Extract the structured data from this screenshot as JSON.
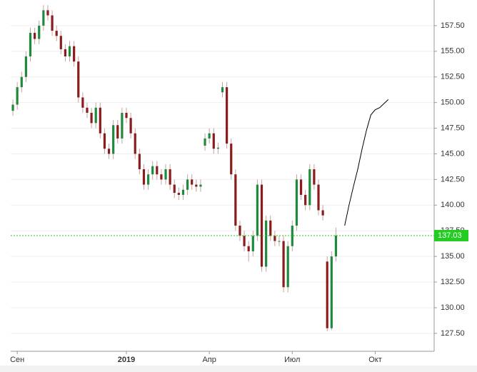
{
  "chart_data": {
    "type": "candlestick",
    "categories": [
      null,
      "Сен",
      null,
      null,
      null,
      null,
      null,
      null,
      null,
      null,
      null,
      null,
      null,
      null,
      null,
      null,
      null,
      null,
      null,
      null,
      null,
      null,
      null,
      null,
      null,
      null,
      "2019",
      null,
      null,
      null,
      null,
      null,
      null,
      null,
      null,
      null,
      null,
      null,
      null,
      null,
      null,
      null,
      null,
      null,
      null,
      "Апр",
      null,
      null,
      null,
      null,
      null,
      null,
      null,
      null,
      null,
      null,
      null,
      null,
      null,
      null,
      null,
      null,
      null,
      null,
      "Июл",
      null,
      null,
      null,
      null,
      null,
      null,
      null,
      null,
      null,
      null,
      null,
      null,
      null,
      null,
      null,
      null,
      null,
      null,
      "Окт",
      null,
      null,
      null,
      null,
      null,
      null,
      null,
      null,
      null,
      null,
      null,
      null,
      null
    ],
    "open": [
      149.2,
      149.8,
      151.5,
      152.5,
      154.5,
      156.8,
      156.2,
      157.5,
      159,
      158.5,
      157,
      156.5,
      155.2,
      154.5,
      155.5,
      154,
      150.5,
      149.5,
      149,
      148,
      149.5,
      147,
      145.5,
      145,
      147.8,
      146.5,
      149,
      148.5,
      147,
      145,
      143.5,
      142,
      143,
      143.8,
      143,
      142.5,
      143.5,
      142,
      141.2,
      141,
      141.5,
      142.5,
      142,
      141.8,
      145.8,
      146.5,
      147,
      145.5,
      151,
      151.5,
      146,
      143,
      138,
      137,
      136,
      135.5,
      137,
      142,
      134,
      138.5,
      137,
      136.5,
      136.5,
      132,
      136,
      138,
      142.5,
      141,
      140,
      143.5,
      142,
      139.5,
      134.5,
      128,
      135,
      null,
      null,
      null,
      null,
      null,
      null,
      null,
      null,
      null,
      null,
      null,
      null,
      null,
      null,
      null,
      null,
      null,
      null,
      null,
      null,
      null,
      null
    ],
    "high": [
      150.3,
      152,
      153,
      155,
      157.3,
      157.3,
      158,
      159.5,
      159.5,
      159,
      157.5,
      157,
      155.7,
      156,
      156,
      154.5,
      151,
      150,
      149.5,
      150,
      150,
      147.5,
      146,
      148.3,
      148.3,
      149.5,
      149.5,
      149,
      147.5,
      145.5,
      144,
      143.5,
      144.3,
      144.3,
      143.5,
      144,
      144,
      142.5,
      141.7,
      142,
      143,
      143,
      142.5,
      142.5,
      147,
      147.5,
      147.5,
      146.1,
      152,
      152,
      146.5,
      143.5,
      138.5,
      137.5,
      136.5,
      137.5,
      142.5,
      142.5,
      139,
      139,
      137.5,
      137,
      137,
      136.5,
      138.5,
      143,
      143,
      141.5,
      144,
      144,
      142.5,
      140,
      135,
      135.5,
      137.8,
      null,
      null,
      null,
      null,
      null,
      null,
      null,
      null,
      null,
      null,
      null,
      null,
      null,
      null,
      null,
      null,
      null,
      null,
      null,
      null,
      null,
      null
    ],
    "low": [
      148.7,
      149.3,
      151,
      152,
      154,
      155.7,
      155.7,
      157,
      158,
      156.5,
      156,
      154.7,
      154,
      154,
      153.5,
      150,
      149,
      148.5,
      147.5,
      147.5,
      146.5,
      145,
      144.5,
      144.5,
      146,
      146,
      148,
      146.5,
      144.5,
      143,
      141.5,
      141.5,
      142.5,
      142.5,
      142,
      142,
      141.5,
      140.7,
      140.5,
      140.5,
      141,
      141.5,
      141.3,
      141.3,
      145.3,
      146,
      145,
      145,
      150.5,
      145.5,
      142.5,
      137.5,
      136.5,
      135.5,
      134.5,
      135,
      136.5,
      133.5,
      133.5,
      136.5,
      136,
      136,
      131.5,
      131.5,
      135.5,
      137.5,
      140.5,
      139.5,
      139.5,
      141.5,
      139,
      138.5,
      127.7,
      127.8,
      134.5,
      null,
      null,
      null,
      null,
      null,
      null,
      null,
      null,
      null,
      null,
      null,
      null,
      null,
      null,
      null,
      null,
      null,
      null,
      null,
      null,
      null,
      null
    ],
    "close": [
      149.8,
      151.5,
      152.5,
      154.5,
      156.8,
      156.2,
      157.5,
      159,
      158.5,
      157,
      156.5,
      155.2,
      154.5,
      155.5,
      154,
      150.5,
      149.5,
      149,
      148,
      149.5,
      147,
      145.5,
      145,
      147.8,
      146.5,
      149,
      148.5,
      147,
      145,
      143.5,
      142,
      143,
      143.8,
      143,
      142.5,
      143.5,
      142,
      141.2,
      141,
      141.5,
      142.5,
      142,
      141.8,
      142,
      146.5,
      147,
      145.5,
      145.6,
      151.5,
      146,
      143,
      138,
      137,
      136,
      135.5,
      137,
      142,
      134,
      138.5,
      137,
      136.5,
      136.5,
      132,
      136,
      138,
      142.5,
      141,
      140,
      143.5,
      142,
      139.5,
      139,
      128,
      135,
      137.03,
      null,
      null,
      null,
      null,
      null,
      null,
      null,
      null,
      null,
      null,
      null,
      null,
      null,
      null,
      null,
      null,
      null,
      null,
      null,
      null,
      null,
      null
    ],
    "up_color": "#1f8a3b",
    "down_color": "#8b1c1c",
    "forecast": {
      "color": "#000000",
      "values": [
        null,
        null,
        null,
        null,
        null,
        null,
        null,
        null,
        null,
        null,
        null,
        null,
        null,
        null,
        null,
        null,
        null,
        null,
        null,
        null,
        null,
        null,
        null,
        null,
        null,
        null,
        null,
        null,
        null,
        null,
        null,
        null,
        null,
        null,
        null,
        null,
        null,
        null,
        null,
        null,
        null,
        null,
        null,
        null,
        null,
        null,
        null,
        null,
        null,
        null,
        null,
        null,
        null,
        null,
        null,
        null,
        null,
        null,
        null,
        null,
        null,
        null,
        null,
        null,
        null,
        null,
        null,
        null,
        null,
        null,
        null,
        null,
        null,
        null,
        null,
        null,
        138,
        140,
        141.8,
        143.5,
        145.5,
        147.3,
        148.8,
        149.3,
        149.5,
        149.9,
        150.3,
        null,
        null,
        null,
        null,
        null,
        null,
        null,
        null,
        null,
        null
      ]
    },
    "last_price": {
      "value": 137.03,
      "label": "137.03",
      "color": "#22cc22"
    },
    "ylim": [
      125.75,
      160
    ],
    "yticks": [
      {
        "value": 127.5,
        "label": "127.50"
      },
      {
        "value": 130,
        "label": "130.00"
      },
      {
        "value": 132.5,
        "label": "132.50"
      },
      {
        "value": 135,
        "label": "135.00"
      },
      {
        "value": 137.5,
        "label": "137.50"
      },
      {
        "value": 140,
        "label": "140.00"
      },
      {
        "value": 142.5,
        "label": "142.50"
      },
      {
        "value": 145,
        "label": "145.00"
      },
      {
        "value": 147.5,
        "label": "147.50"
      },
      {
        "value": 150,
        "label": "150.00"
      },
      {
        "value": 152.5,
        "label": "152.50"
      },
      {
        "value": 155,
        "label": "155.00"
      },
      {
        "value": 157.5,
        "label": "157.50"
      }
    ],
    "grid": true
  }
}
